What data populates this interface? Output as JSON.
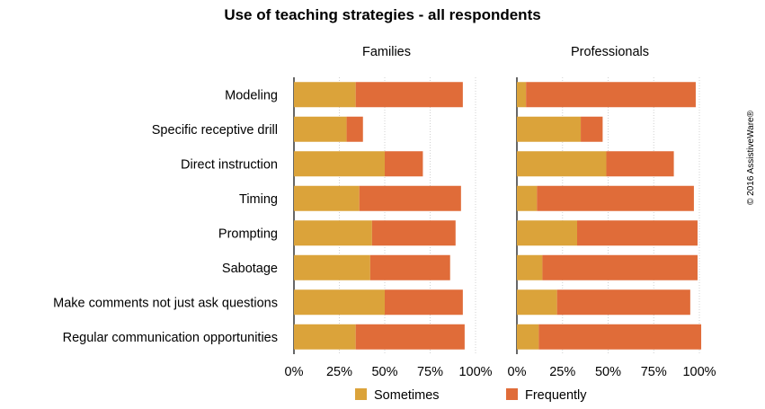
{
  "chart_data": {
    "type": "bar",
    "stacked": true,
    "orientation": "horizontal",
    "title": "Use of teaching strategies - all respondents",
    "categories": [
      "Modeling",
      "Specific receptive drill",
      "Direct instruction",
      "Timing",
      "Prompting",
      "Sabotage",
      "Make comments not just ask questions",
      "Regular communication opportunities"
    ],
    "x_ticks": [
      "0%",
      "25%",
      "50%",
      "75%",
      "100%"
    ],
    "xlim": [
      0,
      100
    ],
    "grid": true,
    "legend_position": "bottom",
    "colors": {
      "Sometimes": "#dba33a",
      "Frequently": "#e06c39"
    },
    "panels": [
      {
        "name": "Families",
        "series": [
          {
            "name": "Sometimes",
            "values": [
              34,
              29,
              50,
              36,
              43,
              42,
              50,
              34
            ]
          },
          {
            "name": "Frequently",
            "values": [
              59,
              9,
              21,
              56,
              46,
              44,
              43,
              60
            ]
          }
        ]
      },
      {
        "name": "Professionals",
        "series": [
          {
            "name": "Sometimes",
            "values": [
              5,
              35,
              49,
              11,
              33,
              14,
              22,
              12
            ]
          },
          {
            "name": "Frequently",
            "values": [
              93,
              12,
              37,
              86,
              66,
              85,
              73,
              89
            ]
          }
        ]
      }
    ]
  },
  "copyright": "© 2016 AssistiveWare®"
}
